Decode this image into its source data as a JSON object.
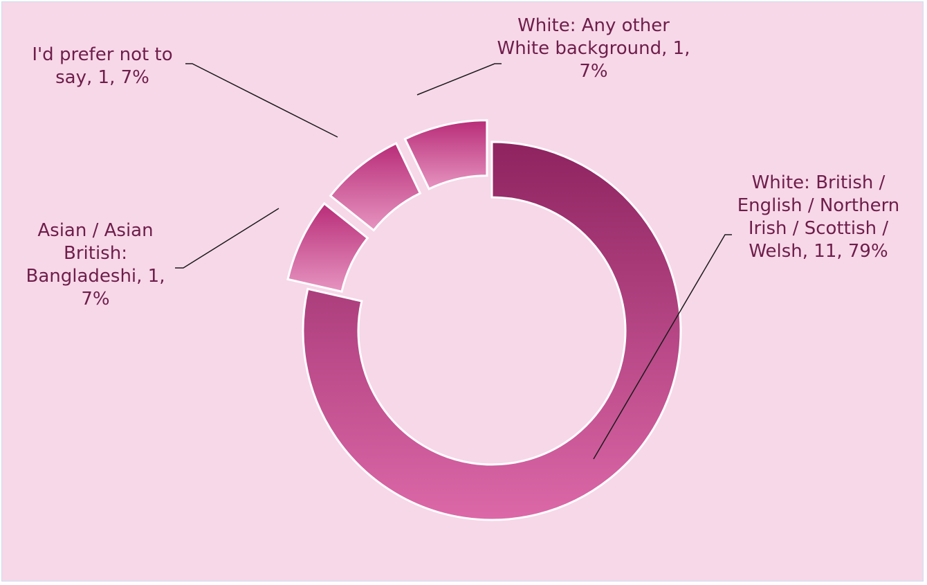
{
  "colors": {
    "background": "#f7d8e8",
    "label_text": "#6e1d4a",
    "leader_line": "#1a1a1a",
    "slice_border": "#ffffff",
    "main_gradient_top": "#8e2360",
    "main_gradient_bottom": "#dc68a8",
    "small_gradient_top": "#b82c78",
    "small_gradient_bottom": "#e694c0"
  },
  "chart_data": {
    "type": "pie",
    "variant": "doughnut",
    "exploded": true,
    "title": "",
    "slices": [
      {
        "name": "White: British / English / Northern Irish / Scottish / Welsh",
        "count": 11,
        "percent": 79,
        "label": "White: British / English / Northern Irish / Scottish / Welsh, 11, 79%"
      },
      {
        "name": "Asian / Asian British: Bangladeshi",
        "count": 1,
        "percent": 7,
        "label": "Asian / Asian British: Bangladeshi, 1, 7%"
      },
      {
        "name": "I'd prefer not to say",
        "count": 1,
        "percent": 7,
        "label": "I'd prefer not to say, 1, 7%"
      },
      {
        "name": "White: Any other White background",
        "count": 1,
        "percent": 7,
        "label": "White: Any other White background, 1, 7%"
      }
    ]
  }
}
